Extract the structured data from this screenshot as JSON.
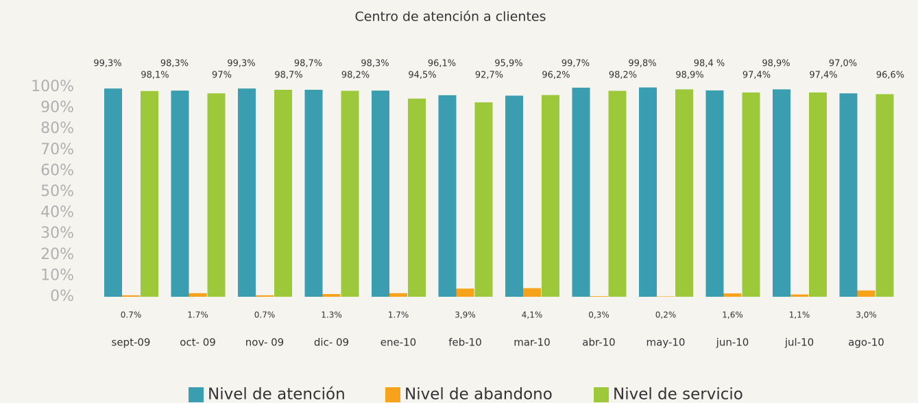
{
  "chart_data": {
    "type": "bar",
    "title": "Centro de atención a clientes",
    "categories": [
      "sept-09",
      "oct- 09",
      "nov- 09",
      "dic- 09",
      "ene-10",
      "feb-10",
      "mar-10",
      "abr-10",
      "may-10",
      "jun-10",
      "jul-10",
      "ago-10"
    ],
    "series": [
      {
        "name": "Nivel de atención",
        "color": "#3a9db0",
        "values": [
          99.3,
          98.3,
          99.3,
          98.7,
          98.3,
          96.1,
          95.9,
          99.7,
          99.8,
          98.4,
          98.9,
          97.0
        ],
        "value_labels": [
          "99,3%",
          "98,3%",
          "99,3%",
          "98,7%",
          "98,3%",
          "96,1%",
          "95,9%",
          "99,7%",
          "99,8%",
          "98,4 %",
          "98,9%",
          "97,0%"
        ]
      },
      {
        "name": "Nivel de abandono",
        "color": "#f7a21b",
        "values": [
          0.7,
          1.7,
          0.7,
          1.3,
          1.7,
          3.9,
          4.1,
          0.3,
          0.2,
          1.6,
          1.1,
          3.0
        ],
        "value_labels": [
          "0.7%",
          "1.7%",
          "0.7%",
          "1.3%",
          "1.7%",
          "3,9%",
          "4,1%",
          "0,3%",
          "0,2%",
          "1,6%",
          "1,1%",
          "3,0%"
        ]
      },
      {
        "name": "Nivel de servicio",
        "color": "#9cc83a",
        "values": [
          98.1,
          97,
          98.7,
          98.2,
          94.5,
          92.7,
          96.2,
          98.2,
          98.9,
          97.4,
          97.4,
          96.6
        ],
        "value_labels": [
          "98,1%",
          "97%",
          "98,7%",
          "98,2%",
          "94,5%",
          "92,7%",
          "96,2%",
          "98,2%",
          "98,9%",
          "97,4%",
          "97,4%",
          "96,6%"
        ]
      }
    ],
    "ylim": [
      0,
      100
    ],
    "yticks": [
      {
        "value": 0,
        "label": "0%"
      },
      {
        "value": 10,
        "label": "10%"
      },
      {
        "value": 20,
        "label": "20%"
      },
      {
        "value": 30,
        "label": "30%"
      },
      {
        "value": 40,
        "label": "40%"
      },
      {
        "value": 50,
        "label": "50%"
      },
      {
        "value": 60,
        "label": "60%"
      },
      {
        "value": 70,
        "label": "70%"
      },
      {
        "value": 80,
        "label": "80%"
      },
      {
        "value": 90,
        "label": "90%"
      },
      {
        "value": 100,
        "label": "100%"
      }
    ],
    "grid": false,
    "legend": "bottom"
  }
}
